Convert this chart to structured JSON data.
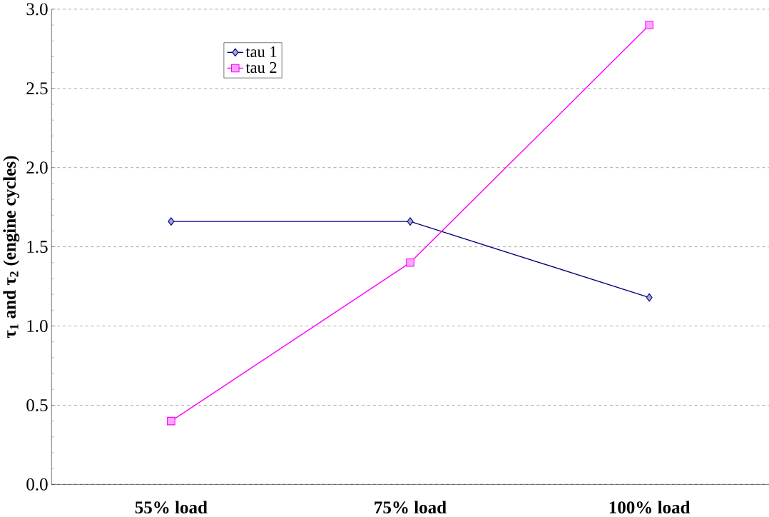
{
  "chart_data": {
    "type": "line",
    "ylabel": "τ$_{1}$ and τ$_{2}$ (engine cycles)",
    "categories": [
      "55% load",
      "75% load",
      "100% load"
    ],
    "series": [
      {
        "name": "tau 1",
        "color": "#000080",
        "marker": "diamond",
        "values": [
          1.66,
          1.66,
          1.18
        ]
      },
      {
        "name": "tau 2",
        "color": "#ff00ff",
        "marker": "square",
        "values": [
          0.4,
          1.4,
          2.9
        ]
      }
    ],
    "ylim": [
      0,
      3
    ],
    "yticks": [
      {
        "value": 0,
        "label": "0.0"
      },
      0.5,
      {
        "value": 1,
        "label": "1.0"
      },
      1.5,
      {
        "value": 2,
        "label": "2.0"
      },
      2.5,
      {
        "value": 3,
        "label": "3.0"
      }
    ],
    "grid": "y",
    "legend": "top left",
    "line_style": "solid"
  }
}
